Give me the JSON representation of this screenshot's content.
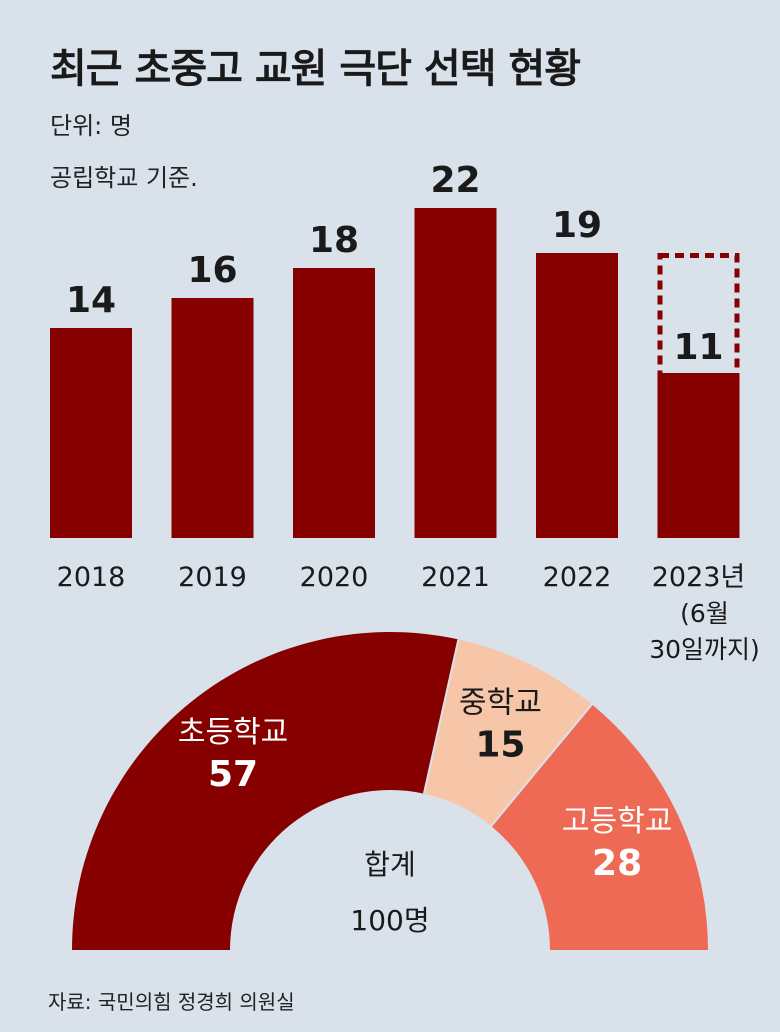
{
  "title": "최근 초중고 교원 극단 선택 현황",
  "subtitle_unit": "단위: 명",
  "subtitle_basis": "공립학교 기준.",
  "source": "자료: 국민의힘 정경희 의원실",
  "colors": {
    "bar": "#870000",
    "elementary": "#870000",
    "middle": "#f7c6a8",
    "high": "#ef6a55",
    "background": "#d9e2ea"
  },
  "chart_data": [
    {
      "type": "bar",
      "categories": [
        "2018",
        "2019",
        "2020",
        "2021",
        "2022",
        "2023년"
      ],
      "category_notes": [
        "",
        "",
        "",
        "",
        "",
        "(6월\n30일까지)"
      ],
      "values": [
        14,
        16,
        18,
        22,
        19,
        11
      ],
      "ylim": [
        0,
        22
      ],
      "grid": false,
      "partial_year_outline_value": 19,
      "title": "최근 초중고 교원 극단 선택 현황"
    },
    {
      "type": "pie",
      "style": "semicircle-donut",
      "labels": [
        "초등학교",
        "중학교",
        "고등학교"
      ],
      "values": [
        57,
        15,
        28
      ],
      "center_label": "합계",
      "center_value": "100명"
    }
  ]
}
